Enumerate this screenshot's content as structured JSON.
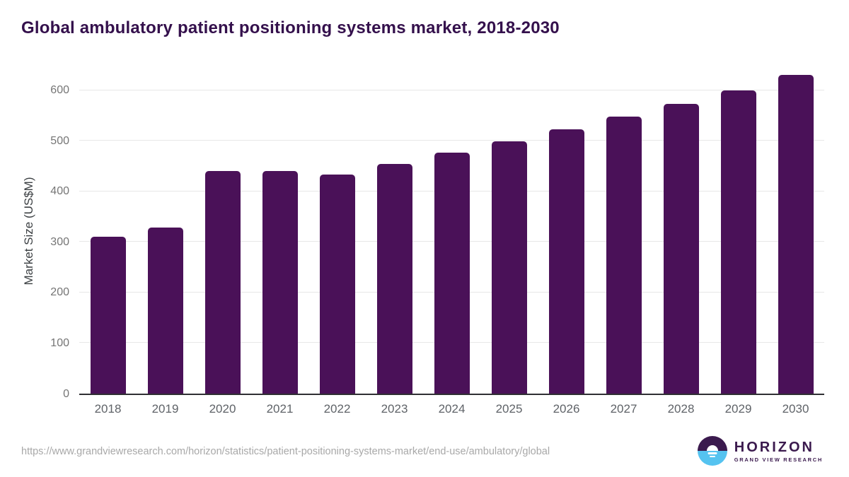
{
  "title": "Global ambulatory patient positioning systems market, 2018-2030",
  "chart_data": {
    "type": "bar",
    "title": "Global ambulatory patient positioning systems market, 2018-2030",
    "categories": [
      "2018",
      "2019",
      "2020",
      "2021",
      "2022",
      "2023",
      "2024",
      "2025",
      "2026",
      "2027",
      "2028",
      "2029",
      "2030"
    ],
    "values": [
      310,
      328,
      441,
      440,
      433,
      454,
      477,
      499,
      523,
      548,
      573,
      600,
      630
    ],
    "xlabel": "",
    "ylabel": "Market Size (US$M)",
    "ylim": [
      0,
      650
    ],
    "yticks": [
      0,
      100,
      200,
      300,
      400,
      500,
      600
    ],
    "grid": true,
    "legend": "none",
    "bar_color": "#4a1158"
  },
  "colors": {
    "title_text": "#34104c",
    "bar": "#4a1158",
    "gridline": "#e7e7e7",
    "axis_line": "#2f2f33",
    "tick_text": "#757575",
    "x_tick_text": "#5f6368",
    "source_text": "#a8a8a8",
    "logo_purple": "#3b1a4e",
    "logo_blue": "#55c3f0"
  },
  "footer": {
    "source_url": "https://www.grandviewresearch.com/horizon/statistics/patient-positioning-systems-market/end-use/ambulatory/global",
    "logo": {
      "icon": "horizon-sun-icon",
      "brand": "HORIZON",
      "tagline": "GRAND VIEW RESEARCH"
    }
  }
}
